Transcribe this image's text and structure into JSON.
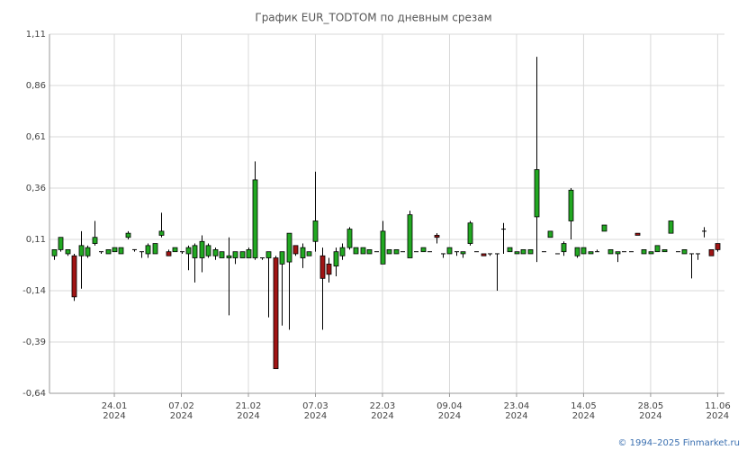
{
  "chart_data": {
    "type": "candlestick",
    "title": "График EUR_TODTOM по дневным срезам",
    "footer": "© 1994–2025 Finmarket.ru",
    "categories": [
      null,
      null,
      null,
      null,
      null,
      null,
      null,
      null,
      null,
      [
        "24.01",
        "2024"
      ],
      null,
      null,
      null,
      null,
      null,
      null,
      null,
      null,
      null,
      [
        "07.02",
        "2024"
      ],
      null,
      null,
      null,
      null,
      null,
      null,
      null,
      null,
      null,
      [
        "21.02",
        "2024"
      ],
      null,
      null,
      null,
      null,
      null,
      null,
      null,
      null,
      null,
      [
        "07.03",
        "2024"
      ],
      null,
      null,
      null,
      null,
      null,
      null,
      null,
      null,
      null,
      [
        "22.03",
        "2024"
      ],
      null,
      null,
      null,
      null,
      null,
      null,
      null,
      null,
      null,
      [
        "09.04",
        "2024"
      ],
      null,
      null,
      null,
      null,
      null,
      null,
      null,
      null,
      null,
      [
        "23.04",
        "2024"
      ],
      null,
      null,
      null,
      null,
      null,
      null,
      null,
      null,
      null,
      [
        "14.05",
        "2024"
      ],
      null,
      null,
      null,
      null,
      null,
      null,
      null,
      null,
      null,
      [
        "28.05",
        "2024"
      ],
      null,
      null,
      null,
      null,
      null,
      null,
      null,
      null,
      null,
      [
        "11.06",
        "2024"
      ]
    ],
    "open": [
      0.03,
      0.06,
      0.04,
      0.03,
      0.03,
      0.03,
      0.09,
      0.05,
      0.04,
      0.05,
      0.04,
      0.12,
      0.06,
      0.05,
      0.04,
      0.04,
      0.13,
      0.05,
      0.05,
      0.05,
      0.04,
      0.02,
      0.02,
      0.03,
      0.03,
      0.02,
      0.02,
      0.02,
      0.02,
      0.02,
      0.02,
      0.02,
      0.02,
      0.02,
      -0.01,
      0,
      0.08,
      0.02,
      0.03,
      0.1,
      0.03,
      -0.01,
      -0.02,
      0.03,
      0.07,
      0.04,
      0.04,
      0.04,
      0.05,
      -0.01,
      0.04,
      0.04,
      0.05,
      0.02,
      0.05,
      0.05,
      0.05,
      0.13,
      0.04,
      0.04,
      0.05,
      0.04,
      0.09,
      0.05,
      0.04,
      0.04,
      0.04,
      0.16,
      0.05,
      0.04,
      0.04,
      0.04,
      0.22,
      0.05,
      0.12,
      0.04,
      0.05,
      0.2,
      0.03,
      0.04,
      0.04,
      0.05,
      0.15,
      0.04,
      0.04,
      0.05,
      0.05,
      0.14,
      0.04,
      0.04,
      0.05,
      0.05,
      0.14,
      0.05,
      0.04,
      0.04,
      0.04,
      0.15,
      0.06,
      0.09
    ],
    "high": [
      0.06,
      0.12,
      0.06,
      0.04,
      0.15,
      0.08,
      0.2,
      0.05,
      0.06,
      0.07,
      0.07,
      0.15,
      0.06,
      0.05,
      0.09,
      0.09,
      0.24,
      0.06,
      0.07,
      0.05,
      0.08,
      0.09,
      0.13,
      0.09,
      0.07,
      0.05,
      0.12,
      0.05,
      0.05,
      0.07,
      0.49,
      0.02,
      0.05,
      0.03,
      0.05,
      0.14,
      0.08,
      0.09,
      0.05,
      0.44,
      0.07,
      0.02,
      0.07,
      0.09,
      0.17,
      0.07,
      0.07,
      0.06,
      0.05,
      0.2,
      0.06,
      0.06,
      0.05,
      0.25,
      0.05,
      0.07,
      0.05,
      0.14,
      0.04,
      0.07,
      0.05,
      0.05,
      0.2,
      0.05,
      0.04,
      0.04,
      0.04,
      0.19,
      0.07,
      0.05,
      0.06,
      0.06,
      1.0,
      0.05,
      0.15,
      0.04,
      0.1,
      0.36,
      0.07,
      0.07,
      0.05,
      0.06,
      0.18,
      0.06,
      0.05,
      0.05,
      0.05,
      0.14,
      0.06,
      0.05,
      0.08,
      0.06,
      0.2,
      0.05,
      0.06,
      0.04,
      0.04,
      0.17,
      0.06,
      0.09
    ],
    "low": [
      0.01,
      0.05,
      0.03,
      -0.19,
      -0.13,
      0.02,
      0.08,
      0.04,
      0.04,
      0.05,
      0.04,
      0.11,
      0.05,
      0.02,
      0.02,
      0.04,
      0.12,
      0.03,
      0.05,
      0.04,
      -0.04,
      -0.1,
      -0.05,
      0.02,
      0.01,
      0.02,
      -0.26,
      -0.01,
      0.02,
      0.02,
      0.01,
      0.01,
      -0.27,
      -0.52,
      -0.31,
      -0.33,
      0.03,
      -0.03,
      0.03,
      0.05,
      -0.33,
      -0.1,
      -0.07,
      0.01,
      0.06,
      0.04,
      0.04,
      0.04,
      0.05,
      -0.01,
      0.04,
      0.04,
      0.05,
      0.02,
      0.05,
      0.05,
      0.05,
      0.09,
      0.02,
      0.04,
      0.03,
      0.02,
      0.08,
      0.05,
      0.03,
      0.03,
      -0.14,
      0.04,
      0.05,
      0.04,
      0.04,
      0.04,
      0.0,
      0.05,
      0.12,
      0.04,
      0.03,
      0.11,
      0.02,
      0.04,
      0.04,
      0.05,
      0.15,
      0.04,
      0.0,
      0.05,
      0.05,
      0.13,
      0.04,
      0.04,
      0.05,
      0.05,
      0.14,
      0.05,
      0.04,
      -0.08,
      0.01,
      0.12,
      0.03,
      0.05
    ],
    "close": [
      0.06,
      0.12,
      0.06,
      -0.17,
      0.08,
      0.07,
      0.12,
      0.05,
      0.06,
      0.07,
      0.07,
      0.14,
      0.06,
      0.05,
      0.08,
      0.09,
      0.15,
      0.03,
      0.07,
      0.05,
      0.07,
      0.08,
      0.1,
      0.08,
      0.06,
      0.05,
      0.03,
      0.05,
      0.05,
      0.06,
      0.4,
      0.02,
      0.05,
      -0.52,
      0.05,
      0.14,
      0.04,
      0.07,
      0.05,
      0.2,
      -0.08,
      -0.06,
      0.05,
      0.07,
      0.16,
      0.07,
      0.07,
      0.06,
      0.05,
      0.15,
      0.06,
      0.06,
      0.05,
      0.23,
      0.05,
      0.07,
      0.05,
      0.12,
      0.04,
      0.07,
      0.05,
      0.05,
      0.19,
      0.05,
      0.03,
      0.04,
      0.04,
      0.16,
      0.07,
      0.05,
      0.06,
      0.06,
      0.45,
      0.05,
      0.15,
      0.04,
      0.09,
      0.35,
      0.07,
      0.07,
      0.05,
      0.05,
      0.18,
      0.06,
      0.05,
      0.05,
      0.05,
      0.13,
      0.06,
      0.05,
      0.08,
      0.06,
      0.2,
      0.05,
      0.06,
      0.04,
      0.04,
      0.15,
      0.03,
      0.06
    ],
    "up_color": "#22a822",
    "down_color": "#a01414",
    "ylim": [
      -0.64,
      1.11
    ],
    "yticks": [
      {
        "value": -0.64,
        "label": "-0,64"
      },
      {
        "value": -0.39,
        "label": "-0,39"
      },
      {
        "value": -0.14,
        "label": "-0,14"
      },
      {
        "value": 0.11,
        "label": "0,11"
      },
      {
        "value": 0.36,
        "label": "0,36"
      },
      {
        "value": 0.61,
        "label": "0,61"
      },
      {
        "value": 0.86,
        "label": "0,86"
      },
      {
        "value": 1.11,
        "label": "1,11"
      }
    ],
    "grid": true
  }
}
